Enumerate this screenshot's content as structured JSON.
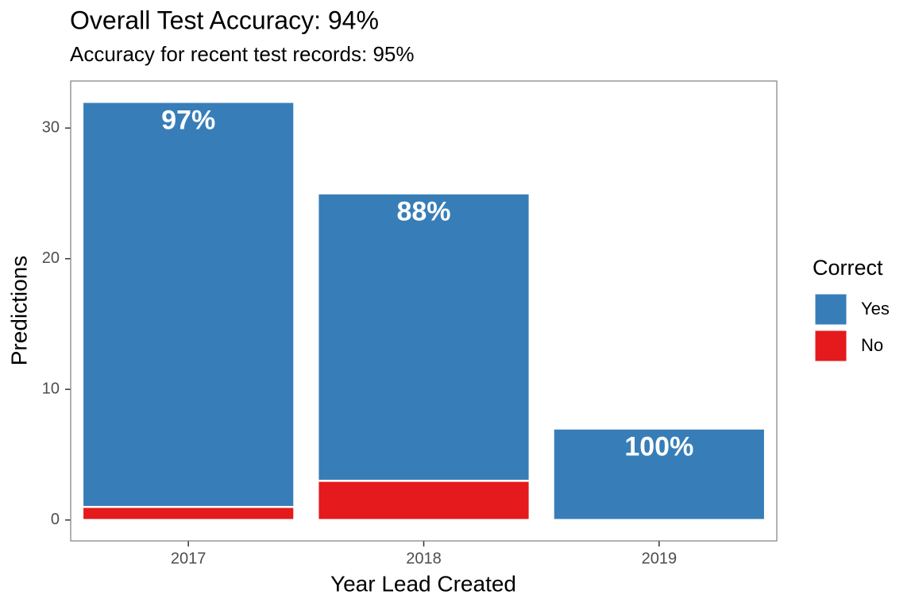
{
  "chart_data": {
    "type": "stacked_bar",
    "title": "Overall Test Accuracy: 94%",
    "subtitle": "Accuracy for recent test records: 95%",
    "x_label": "Year Lead Created",
    "y_label": "Predictions",
    "categories": [
      "2017",
      "2018",
      "2019"
    ],
    "series": [
      {
        "name": "Yes",
        "color": "#377eb8",
        "values": [
          31,
          22,
          7
        ]
      },
      {
        "name": "No",
        "color": "#e41a1c",
        "values": [
          1,
          3,
          0
        ]
      }
    ],
    "annotations": [
      "97%",
      "88%",
      "100%"
    ],
    "legend_title": "Correct",
    "legend": "right",
    "ylim": [
      -1.6,
      33.6
    ],
    "yticks": [
      0,
      10,
      20,
      30
    ],
    "grid": false
  }
}
